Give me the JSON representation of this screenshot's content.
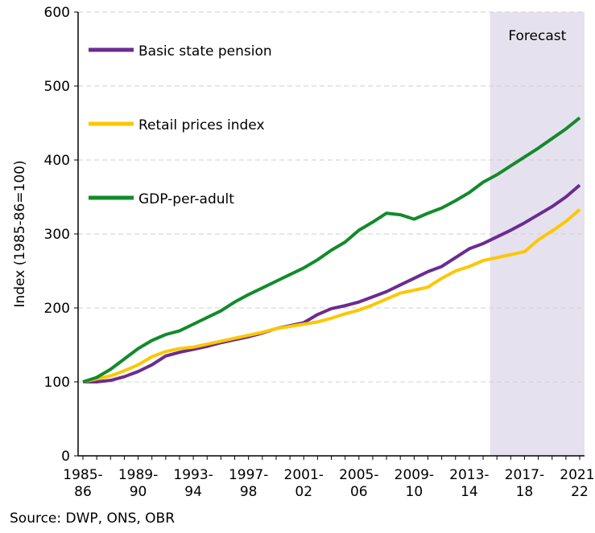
{
  "chart_data": {
    "type": "line",
    "y_label": "Index (1985-86=100)",
    "source": "Source: DWP, ONS, OBR",
    "forecast_label": "Forecast",
    "forecast_start_category": "2015-16",
    "categories": [
      "1985-86",
      null,
      null,
      null,
      "1989-90",
      null,
      null,
      null,
      "1993-94",
      null,
      null,
      null,
      "1997-98",
      null,
      null,
      null,
      "2001-02",
      null,
      null,
      null,
      "2005-06",
      null,
      null,
      null,
      "2009-10",
      null,
      null,
      null,
      "2013-14",
      null,
      null,
      null,
      "2017-18",
      null,
      null,
      null,
      "2021-22"
    ],
    "all_categories": [
      "1985-86",
      "1986-87",
      "1987-88",
      "1988-89",
      "1989-90",
      "1990-91",
      "1991-92",
      "1992-93",
      "1993-94",
      "1994-95",
      "1995-96",
      "1996-97",
      "1997-98",
      "1998-99",
      "1999-00",
      "2000-01",
      "2001-02",
      "2002-03",
      "2003-04",
      "2004-05",
      "2005-06",
      "2006-07",
      "2007-08",
      "2008-09",
      "2009-10",
      "2010-11",
      "2011-12",
      "2012-13",
      "2013-14",
      "2014-15",
      "2015-16",
      "2016-17",
      "2017-18",
      "2018-19",
      "2019-20",
      "2020-21",
      "2021-22"
    ],
    "series": [
      {
        "name": "Basic state pension",
        "color": "#6a2c91",
        "values": [
          100,
          100,
          102,
          107,
          114,
          123,
          135,
          140,
          144,
          148,
          153,
          157,
          161,
          166,
          172,
          176,
          180,
          191,
          199,
          203,
          208,
          215,
          222,
          231,
          240,
          249,
          256,
          268,
          280,
          287,
          296,
          305,
          315,
          326,
          337,
          350,
          366
        ]
      },
      {
        "name": "Retail prices index",
        "color": "#fcc700",
        "values": [
          100,
          104,
          108,
          115,
          123,
          134,
          141,
          145,
          147,
          151,
          155,
          159,
          163,
          167,
          172,
          175,
          178,
          181,
          186,
          192,
          197,
          204,
          212,
          220,
          224,
          228,
          240,
          250,
          256,
          264,
          268,
          272,
          276,
          292,
          304,
          317,
          333
        ]
      },
      {
        "name": "GDP-per-adult",
        "color": "#138a2c",
        "values": [
          100,
          106,
          117,
          131,
          145,
          156,
          164,
          169,
          178,
          187,
          196,
          208,
          218,
          227,
          236,
          245,
          254,
          265,
          278,
          289,
          305,
          316,
          328,
          326,
          320,
          328,
          335,
          345,
          356,
          370,
          380,
          392,
          404,
          416,
          429,
          442,
          457
        ]
      }
    ],
    "ylim": [
      0,
      600
    ],
    "yticks": [
      0,
      100,
      200,
      300,
      400,
      500,
      600
    ],
    "grid": true
  }
}
